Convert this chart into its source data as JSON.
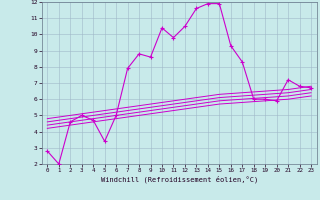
{
  "xlabel": "Windchill (Refroidissement éolien,°C)",
  "x": [
    0,
    1,
    2,
    3,
    4,
    5,
    6,
    7,
    8,
    9,
    10,
    11,
    12,
    13,
    14,
    15,
    16,
    17,
    18,
    19,
    20,
    21,
    22,
    23
  ],
  "main_line": [
    2.8,
    2.0,
    4.6,
    5.0,
    4.7,
    3.4,
    5.0,
    7.9,
    8.8,
    8.6,
    10.4,
    9.8,
    10.5,
    11.6,
    11.9,
    11.9,
    9.3,
    8.3,
    6.0,
    6.0,
    5.9,
    7.2,
    6.8,
    6.7
  ],
  "linear1": [
    4.2,
    4.3,
    4.4,
    4.5,
    4.6,
    4.7,
    4.8,
    4.9,
    5.0,
    5.1,
    5.2,
    5.3,
    5.4,
    5.5,
    5.6,
    5.7,
    5.75,
    5.8,
    5.85,
    5.9,
    5.95,
    6.0,
    6.1,
    6.2
  ],
  "linear2": [
    4.4,
    4.5,
    4.6,
    4.7,
    4.8,
    4.9,
    5.0,
    5.1,
    5.2,
    5.3,
    5.4,
    5.5,
    5.6,
    5.7,
    5.8,
    5.9,
    5.95,
    6.0,
    6.05,
    6.1,
    6.15,
    6.2,
    6.3,
    6.4
  ],
  "linear3": [
    4.6,
    4.7,
    4.8,
    4.9,
    5.0,
    5.1,
    5.2,
    5.3,
    5.4,
    5.5,
    5.6,
    5.7,
    5.8,
    5.9,
    6.0,
    6.1,
    6.15,
    6.2,
    6.25,
    6.3,
    6.35,
    6.4,
    6.5,
    6.6
  ],
  "linear4": [
    4.8,
    4.9,
    5.0,
    5.1,
    5.2,
    5.3,
    5.4,
    5.5,
    5.6,
    5.7,
    5.8,
    5.9,
    6.0,
    6.1,
    6.2,
    6.3,
    6.35,
    6.4,
    6.45,
    6.5,
    6.55,
    6.6,
    6.7,
    6.8
  ],
  "line_color": "#cc00cc",
  "bg_color": "#c8eaea",
  "grid_color": "#a0b8c8",
  "ylim": [
    2,
    12
  ],
  "xlim": [
    -0.5,
    23.5
  ],
  "yticks": [
    2,
    3,
    4,
    5,
    6,
    7,
    8,
    9,
    10,
    11,
    12
  ],
  "xticks": [
    0,
    1,
    2,
    3,
    4,
    5,
    6,
    7,
    8,
    9,
    10,
    11,
    12,
    13,
    14,
    15,
    16,
    17,
    18,
    19,
    20,
    21,
    22,
    23
  ]
}
